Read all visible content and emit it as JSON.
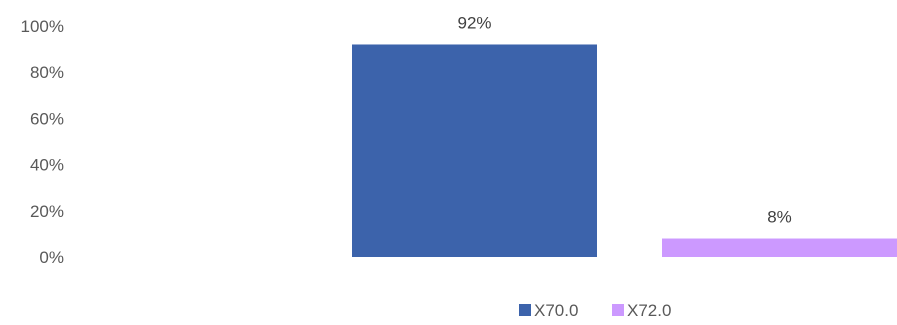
{
  "chart_data": {
    "type": "bar",
    "categories": [
      ""
    ],
    "series": [
      {
        "name": "X70.0",
        "values": [
          92
        ],
        "color": "#3c63ab",
        "label": "92%"
      },
      {
        "name": "X72.0",
        "values": [
          8
        ],
        "color": "#cc99ff",
        "label": "8%"
      }
    ],
    "title": "",
    "xlabel": "",
    "ylabel": "",
    "ylim": [
      0,
      100
    ],
    "yticks": [
      "0%",
      "20%",
      "40%",
      "60%",
      "80%",
      "100%"
    ],
    "grid": false,
    "legend": "bottom"
  }
}
